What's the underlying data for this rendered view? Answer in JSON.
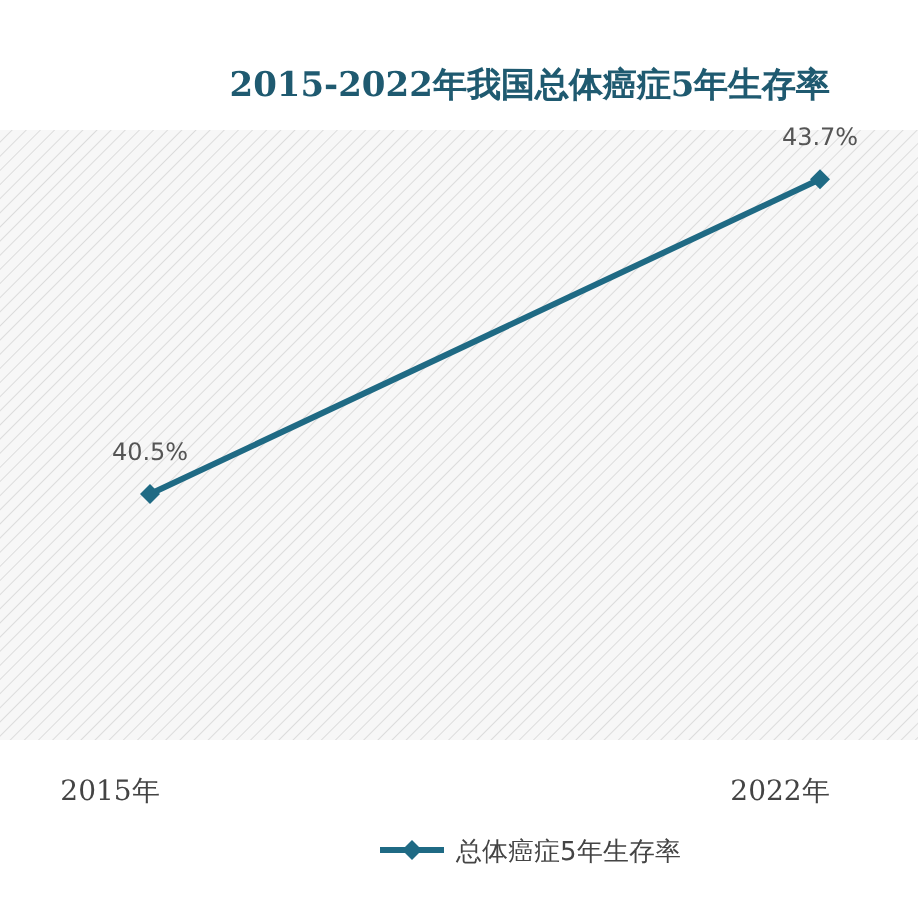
{
  "chart_data": {
    "type": "line",
    "title": "2015-2022年我国总体癌症5年生存率",
    "categories": [
      "2015年",
      "2022年"
    ],
    "series": [
      {
        "name": "总体癌症5年生存率",
        "color": "#1f6a84",
        "values": [
          40.5,
          43.7
        ],
        "value_labels": [
          "40.5%",
          "43.7%"
        ]
      }
    ],
    "ylim": [
      38,
      44.2
    ],
    "marker": "diamond",
    "legend": "bottom"
  }
}
